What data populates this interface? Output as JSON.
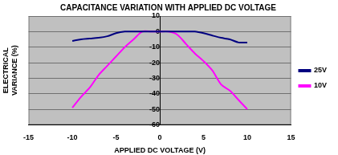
{
  "chart_data": {
    "type": "line",
    "title": "CAPACITANCE VARIATION WITH APPLIED DC VOLTAGE",
    "xlabel": "APPLIED DC VOLTAGE (V)",
    "ylabel": [
      "ELECTRICAL",
      "VARIANCE (%)"
    ],
    "x": [
      -10,
      -9,
      -8,
      -7,
      -6,
      -5,
      -4,
      -3,
      -2,
      -1,
      0,
      1,
      2,
      3,
      4,
      5,
      6,
      7,
      8,
      9,
      10
    ],
    "series": [
      {
        "name": "25V",
        "color": "#000080",
        "values": [
          -6,
          -5,
          -4.5,
          -4,
          -3,
          -1,
          0,
          0,
          0,
          0,
          0,
          0,
          0,
          0,
          0,
          -1,
          -2.5,
          -4,
          -5,
          -7,
          -7
        ]
      },
      {
        "name": "10V",
        "color": "#ff00ff",
        "values": [
          -49,
          -42,
          -36,
          -28,
          -22,
          -16,
          -10,
          -5,
          0,
          0,
          0,
          0,
          -2,
          -8,
          -14,
          -19,
          -25,
          -34,
          -38,
          -44,
          -50
        ]
      }
    ],
    "xlim": [
      -15,
      15
    ],
    "xticks": [
      -15,
      -10,
      -5,
      0,
      5,
      10,
      15
    ],
    "ylim": [
      -60,
      10
    ],
    "yticks": [
      -60,
      -50,
      -40,
      -30,
      -20,
      -10,
      0,
      10
    ],
    "grid": true,
    "legend": "right"
  }
}
